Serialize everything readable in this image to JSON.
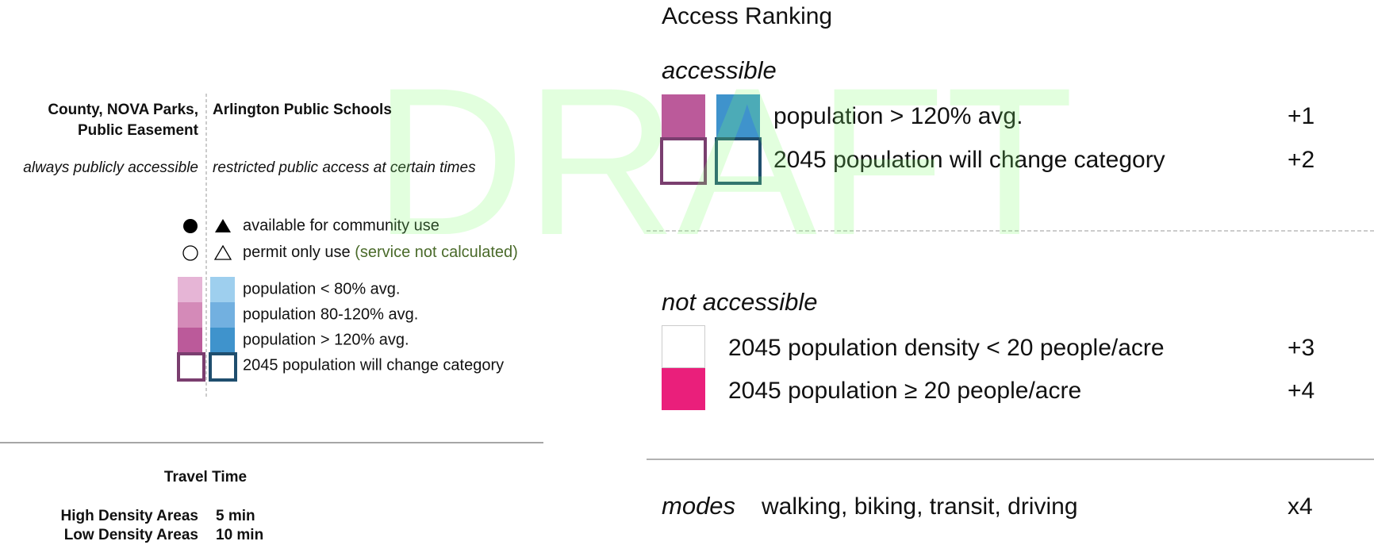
{
  "left": {
    "owners": [
      {
        "lines": [
          "County, NOVA Parks,",
          "Public Easement"
        ],
        "access": "always publicly accessible"
      },
      {
        "lines": [
          "Arlington Public Schools"
        ],
        "access": "restricted public access at certain times"
      }
    ],
    "symbols": [
      "available for community use",
      "permit only use",
      "(service not calculated)"
    ],
    "population": [
      "population < 80% avg.",
      "population 80-120% avg.",
      "population > 120% avg.",
      "2045 population will change category"
    ],
    "travel_time": {
      "title": "Travel Time",
      "rows": [
        [
          "High Density Areas",
          "5 min"
        ],
        [
          "Low Density Areas",
          "10 min"
        ]
      ]
    }
  },
  "right": {
    "title": "Access Ranking",
    "accessible": {
      "label": "accessible",
      "rows": [
        {
          "label": "population > 120% avg.",
          "score": "+1"
        },
        {
          "label": "2045 population will change category",
          "score": "+2"
        }
      ]
    },
    "not_accessible": {
      "label": "not accessible",
      "rows": [
        {
          "label": "2045 population density < 20 people/acre",
          "score": "+3"
        },
        {
          "label": "2045 population ≥ 20 people/acre",
          "score": "+4"
        }
      ]
    },
    "modes": {
      "label": "modes",
      "text": "walking, biking, transit, driving",
      "factor": "x4"
    }
  },
  "watermark": "DRAFT"
}
